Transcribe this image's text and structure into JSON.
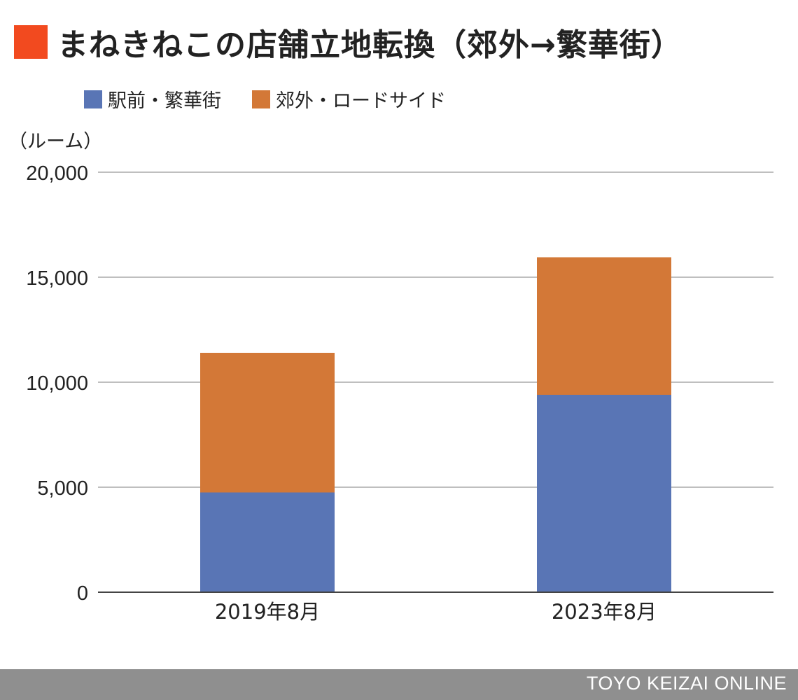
{
  "title": "まねきねこの店舗立地転換（郊外→繁華街）",
  "colors": {
    "title_square": "#f24a1f",
    "series_1": "#5975b5",
    "series_2": "#d37837",
    "grid": "#aaaaaa",
    "axis": "#444444",
    "footer": "#8f8f8f"
  },
  "footer": {
    "credit": "TOYO KEIZAI ONLINE"
  },
  "chart_data": {
    "type": "bar",
    "stacked": true,
    "title": "まねきねこの店舗立地転換（郊外→繁華街）",
    "unit_label": "（ルーム）",
    "categories": [
      "2019年8月",
      "2023年8月"
    ],
    "series": [
      {
        "name": "駅前・繁華街",
        "values": [
          4750,
          9400
        ]
      },
      {
        "name": "郊外・ロードサイド",
        "values": [
          6650,
          6550
        ]
      }
    ],
    "ylim": [
      0,
      20000
    ],
    "yticks": [
      0,
      5000,
      10000,
      15000,
      20000
    ],
    "ytick_labels": [
      "0",
      "5,000",
      "10,000",
      "15,000",
      "20,000"
    ],
    "grid": true,
    "legend_position": "top-left"
  }
}
